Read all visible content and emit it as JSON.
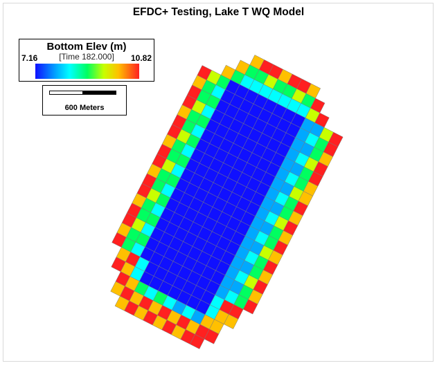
{
  "title": "EFDC+ Testing, Lake T WQ Model",
  "legend": {
    "title": "Bottom Elev (m)",
    "time_label": "[Time 182.000]",
    "min_label": "7.16",
    "max_label": "10.82",
    "min": 7.16,
    "max": 10.82
  },
  "scale": {
    "label": "600 Meters"
  },
  "colors": [
    "#1010ff",
    "#00a8ff",
    "#00ffff",
    "#00ff60",
    "#c8ff00",
    "#ffc000",
    "#ff2020"
  ]
}
